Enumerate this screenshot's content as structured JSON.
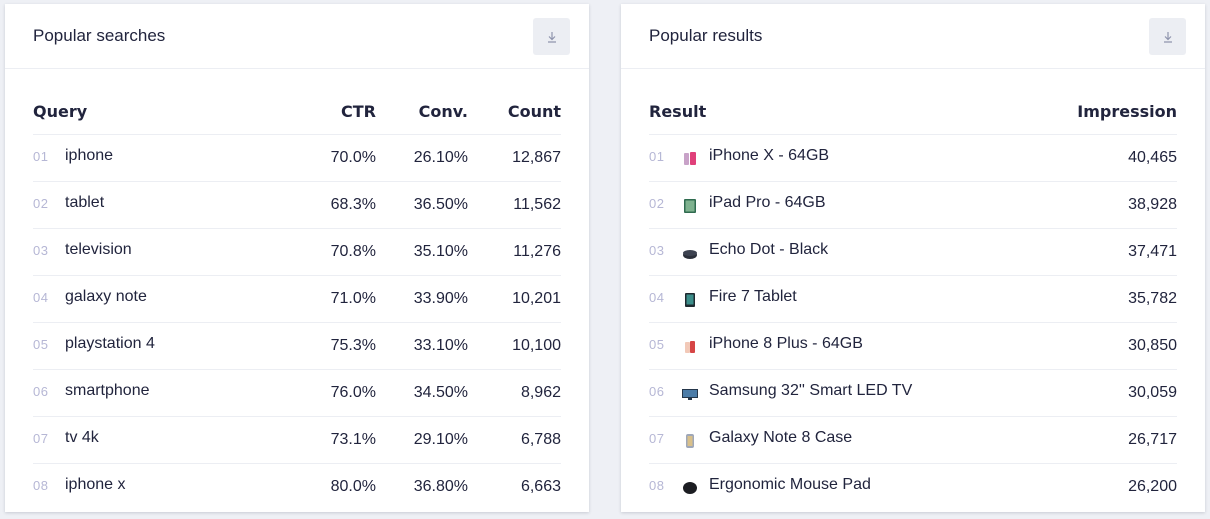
{
  "searches": {
    "title": "Popular searches",
    "download_icon": "download-icon",
    "headers": {
      "query": "Query",
      "ctr": "CTR",
      "conv": "Conv.",
      "count": "Count"
    },
    "rows": [
      {
        "num": "01",
        "query": "iphone",
        "ctr": "70.0%",
        "conv": "26.10%",
        "count": "12,867"
      },
      {
        "num": "02",
        "query": "tablet",
        "ctr": "68.3%",
        "conv": "36.50%",
        "count": "11,562"
      },
      {
        "num": "03",
        "query": "television",
        "ctr": "70.8%",
        "conv": "35.10%",
        "count": "11,276"
      },
      {
        "num": "04",
        "query": "galaxy note",
        "ctr": "71.0%",
        "conv": "33.90%",
        "count": "10,201"
      },
      {
        "num": "05",
        "query": "playstation 4",
        "ctr": "75.3%",
        "conv": "33.10%",
        "count": "10,100"
      },
      {
        "num": "06",
        "query": "smartphone",
        "ctr": "76.0%",
        "conv": "34.50%",
        "count": "8,962"
      },
      {
        "num": "07",
        "query": "tv 4k",
        "ctr": "73.1%",
        "conv": "29.10%",
        "count": "6,788"
      },
      {
        "num": "08",
        "query": "iphone x",
        "ctr": "80.0%",
        "conv": "36.80%",
        "count": "6,663"
      }
    ]
  },
  "results": {
    "title": "Popular results",
    "download_icon": "download-icon",
    "headers": {
      "result": "Result",
      "impression": "Impression"
    },
    "rows": [
      {
        "num": "01",
        "result": "iPhone X - 64GB",
        "impression": "40,465",
        "icon": "iphone-x-thumbnail"
      },
      {
        "num": "02",
        "result": "iPad Pro - 64GB",
        "impression": "38,928",
        "icon": "ipad-pro-thumbnail"
      },
      {
        "num": "03",
        "result": "Echo Dot - Black",
        "impression": "37,471",
        "icon": "echo-dot-thumbnail"
      },
      {
        "num": "04",
        "result": "Fire 7 Tablet",
        "impression": "35,782",
        "icon": "fire-tablet-thumbnail"
      },
      {
        "num": "05",
        "result": "iPhone 8 Plus - 64GB",
        "impression": "30,850",
        "icon": "iphone-8-plus-thumbnail"
      },
      {
        "num": "06",
        "result": "Samsung 32'' Smart LED TV",
        "impression": "30,059",
        "icon": "samsung-tv-thumbnail"
      },
      {
        "num": "07",
        "result": "Galaxy Note 8 Case",
        "impression": "26,717",
        "icon": "galaxy-case-thumbnail"
      },
      {
        "num": "08",
        "result": "Ergonomic Mouse Pad",
        "impression": "26,200",
        "icon": "mouse-pad-thumbnail"
      }
    ]
  },
  "colors": {
    "background": "#eef0f5",
    "panel": "#ffffff",
    "text": "#21243d",
    "muted": "#b6b7d5",
    "divider": "#eceef3"
  }
}
